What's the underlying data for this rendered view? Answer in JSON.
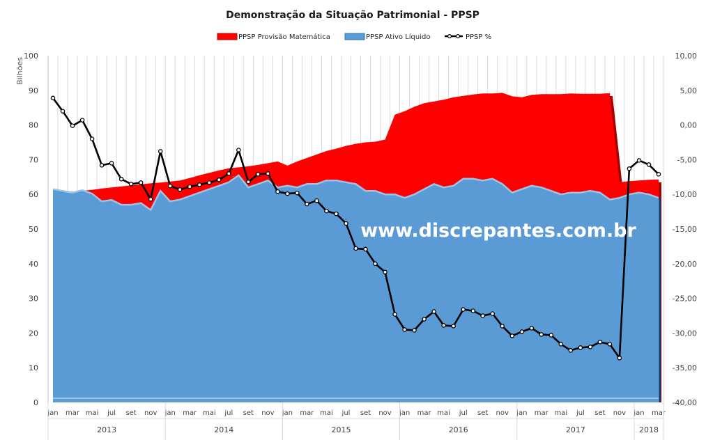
{
  "chart_data": {
    "type": "area",
    "title": "Demonstração da Situação Patrimonial - PPSP",
    "y_unit_label": "Bilhões",
    "watermark": "www.discrepantes.com.br",
    "ylim_left": [
      0,
      100
    ],
    "ylim_right": [
      -40,
      10
    ],
    "yticks_left": [
      "0",
      "10",
      "20",
      "30",
      "40",
      "50",
      "60",
      "70",
      "80",
      "90",
      "100"
    ],
    "yticks_right": [
      "-40,00",
      "-35,00",
      "-30,00",
      "-25,00",
      "-20,00",
      "-15,00",
      "-10,00",
      "-5,00",
      "0,00",
      "5,00",
      "10,00"
    ],
    "grid": "vertical",
    "legend_position": "top",
    "months": [
      "jan",
      "fev",
      "mar",
      "abr",
      "mai",
      "jun",
      "jul",
      "ago",
      "set",
      "out",
      "nov",
      "dez",
      "jan",
      "fev",
      "mar",
      "abr",
      "mai",
      "jun",
      "jul",
      "ago",
      "set",
      "out",
      "nov",
      "dez",
      "jan",
      "fev",
      "mar",
      "abr",
      "mai",
      "jun",
      "jul",
      "ago",
      "set",
      "out",
      "nov",
      "dez",
      "jan",
      "fev",
      "mar",
      "abr",
      "mai",
      "jun",
      "jul",
      "ago",
      "set",
      "out",
      "nov",
      "dez",
      "jan",
      "fev",
      "mar",
      "abr",
      "mai",
      "jun",
      "jul",
      "ago",
      "set",
      "out",
      "nov",
      "dez",
      "jan",
      "fev",
      "mar"
    ],
    "month_tick_labels": [
      "jan",
      "mar",
      "mai",
      "jul",
      "set",
      "nov",
      "jan",
      "mar",
      "mai",
      "jul",
      "set",
      "nov",
      "jan",
      "mar",
      "mai",
      "jul",
      "set",
      "nov",
      "jan",
      "mar",
      "mai",
      "jul",
      "set",
      "nov",
      "jan",
      "mar",
      "mai",
      "jul",
      "set",
      "nov",
      "jan",
      "mar"
    ],
    "years": [
      "2013",
      "2014",
      "2015",
      "2016",
      "2017",
      "2018"
    ],
    "series": [
      {
        "name": "PPSP Provisão Matemática",
        "axis": "left",
        "color": "#ff0000",
        "values": [
          61.5,
          61.0,
          60.8,
          61.0,
          61.3,
          61.7,
          62.0,
          62.3,
          62.6,
          62.9,
          63.2,
          63.4,
          63.7,
          64.0,
          64.7,
          65.5,
          66.2,
          66.9,
          67.5,
          67.8,
          68.1,
          68.5,
          69.0,
          69.5,
          68.3,
          69.5,
          70.5,
          71.5,
          72.5,
          73.2,
          74.0,
          74.6,
          75.0,
          75.2,
          75.8,
          83.0,
          84.0,
          85.3,
          86.3,
          86.8,
          87.3,
          88.0,
          88.4,
          88.8,
          89.1,
          89.1,
          89.3,
          88.3,
          88.0,
          88.7,
          88.9,
          88.9,
          88.9,
          89.1,
          89.0,
          89.0,
          89.0,
          89.2,
          63.5,
          63.8,
          64.0,
          64.2,
          64.3
        ]
      },
      {
        "name": "PPSP Ativo Líquido",
        "axis": "left",
        "color": "#5b9bd5",
        "values": [
          61.5,
          61.0,
          60.5,
          61.2,
          60.2,
          58.0,
          58.4,
          57.0,
          57.0,
          57.5,
          55.5,
          61.0,
          58.0,
          58.5,
          59.5,
          60.5,
          61.5,
          62.5,
          63.5,
          65.5,
          62.0,
          63.0,
          64.0,
          62.0,
          62.5,
          62.0,
          63.0,
          63.0,
          64.0,
          64.0,
          63.5,
          63.0,
          61.0,
          61.0,
          60.0,
          60.0,
          59.0,
          60.0,
          61.5,
          63.0,
          62.0,
          62.5,
          64.5,
          64.5,
          64.0,
          64.5,
          63.0,
          60.5,
          61.5,
          62.5,
          62.0,
          61.0,
          60.0,
          60.5,
          60.5,
          61.0,
          60.5,
          58.5,
          59.0,
          60.0,
          60.5,
          60.0,
          59.0
        ]
      },
      {
        "name": "PPSP %",
        "axis": "right",
        "color": "#000000",
        "values": [
          3.9,
          2.0,
          -0.1,
          0.7,
          -2.0,
          -5.8,
          -5.5,
          -7.8,
          -8.5,
          -8.3,
          -10.7,
          -3.8,
          -8.8,
          -9.3,
          -8.9,
          -8.6,
          -8.3,
          -7.9,
          -7.0,
          -3.6,
          -8.2,
          -7.1,
          -7.0,
          -9.6,
          -9.9,
          -9.8,
          -11.4,
          -10.9,
          -12.4,
          -12.8,
          -14.2,
          -17.8,
          -17.9,
          -20.0,
          -21.2,
          -27.3,
          -29.5,
          -29.6,
          -28.0,
          -26.9,
          -28.9,
          -29.0,
          -26.6,
          -26.8,
          -27.5,
          -27.2,
          -29.0,
          -30.4,
          -29.8,
          -29.3,
          -30.2,
          -30.3,
          -31.6,
          -32.5,
          -32.1,
          -32.0,
          -31.3,
          -31.6,
          -33.6,
          -6.3,
          -5.1,
          -5.7,
          -7.1
        ]
      }
    ]
  }
}
